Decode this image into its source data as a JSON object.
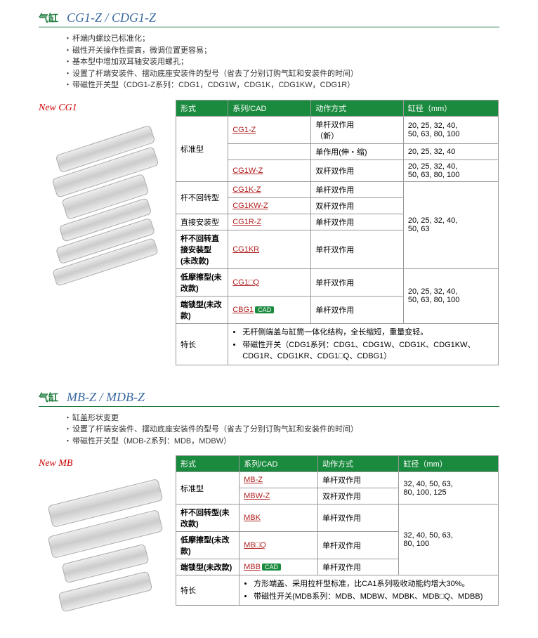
{
  "section1": {
    "title_cn": "气缸",
    "title_en": "CG1-Z / CDG1-Z",
    "bullets": [
      "杆端内螺纹已标准化；",
      "磁性开关操作性提高，微调位置更容易；",
      "基本型中增加双耳轴安装用螺孔；",
      "设置了杆端安装件、摆动底座安装件的型号（省去了分别订购气缸和安装件的时间）",
      "带磁性开关型（CDG1-Z系列：CDG1，CDG1W，CDG1K，CDG1KW，CDG1R）"
    ],
    "new_label": "New",
    "new_model": "CG1",
    "headers": [
      "形式",
      "系列/CAD",
      "动作方式",
      "缸径（mm）"
    ],
    "rows": [
      {
        "type": "标准型",
        "rowspan": 3,
        "model": "CG1-Z",
        "link": true,
        "action": "单杆双作用\n（新）",
        "bore": "20, 25, 32, 40,\n50, 63, 80, 100",
        "bore_rowspan": 1
      },
      {
        "model": "",
        "action": "单作用(伸・缩)",
        "bore": "20, 25, 32, 40"
      },
      {
        "model": "CG1W-Z",
        "link": true,
        "action": "双杆双作用",
        "bore": "20, 25, 32, 40,\n50, 63, 80, 100"
      },
      {
        "type": "杆不回转型",
        "rowspan": 2,
        "model": "CG1K-Z",
        "link": true,
        "action": "单杆双作用",
        "bore": "20, 25, 32, 40,\n50, 63",
        "bore_rowspan": 4
      },
      {
        "model": "CG1KW-Z",
        "link": true,
        "action": "双杆双作用"
      },
      {
        "type": "直接安装型",
        "model": "CG1R-Z",
        "link": true,
        "action": "单杆双作用"
      },
      {
        "type": "杆不回转直接安装型\n(未改款)",
        "bold": true,
        "model": "CG1KR",
        "link": true,
        "action": "单杆双作用"
      },
      {
        "type": "低摩擦型(未改款)",
        "bold": true,
        "model": "CG1□Q",
        "link": true,
        "action": "单杆双作用",
        "bore": "20, 25, 32, 40,\n50, 63, 80, 100",
        "bore_rowspan": 2
      },
      {
        "type": "端锁型(未改款)",
        "bold": true,
        "model": "CBG1",
        "link": true,
        "cad": true,
        "action": "单杆双作用"
      }
    ],
    "feature_label": "特长",
    "features": [
      "无杆侧端盖与缸筒一体化结构，全长缩短，重量变轻。",
      "带磁性开关（CDG1系列：CDG1、CDG1W、CDG1K、CDG1KW、CDG1R、CDG1KR、CDG1□Q、CDBG1）"
    ]
  },
  "section2": {
    "title_cn": "气缸",
    "title_en": "MB-Z / MDB-Z",
    "bullets": [
      "缸盖形状变更",
      "设置了杆端安装件、摆动底座安装件的型号（省去了分别订购气缸和安装件的时间）",
      "带磁性开关型（MDB-Z系列：MDB，MDBW）"
    ],
    "new_label": "New",
    "new_model": "MB",
    "headers": [
      "形式",
      "系列/CAD",
      "动作方式",
      "缸径（mm）"
    ],
    "rows": [
      {
        "type": "标准型",
        "rowspan": 2,
        "model": "MB-Z",
        "link": true,
        "action": "单杆双作用",
        "bore": "32, 40, 50, 63,\n80, 100, 125",
        "bore_rowspan": 2
      },
      {
        "model": "MBW-Z",
        "link": true,
        "action": "双杆双作用"
      },
      {
        "type": "杆不回转型(未\n改款)",
        "bold": true,
        "model": "MBK",
        "link": true,
        "action": "单杆双作用",
        "bore": "32, 40, 50, 63,\n80, 100",
        "bore_rowspan": 3
      },
      {
        "type": "低摩擦型(未改\n款)",
        "bold": true,
        "model": "MB□Q",
        "link": true,
        "action": "单杆双作用"
      },
      {
        "type": "端锁型(未改款)",
        "bold": true,
        "model": "MBB",
        "link": true,
        "cad": true,
        "action": "单杆双作用"
      }
    ],
    "feature_label": "特长",
    "features": [
      "方形端盖、采用拉杆型标准，比CA1系列吸收动能约增大30%。",
      "带磁性开关(MDB系列：MDB、MDBW、MDBK、MDB□Q、MDBB)"
    ]
  }
}
